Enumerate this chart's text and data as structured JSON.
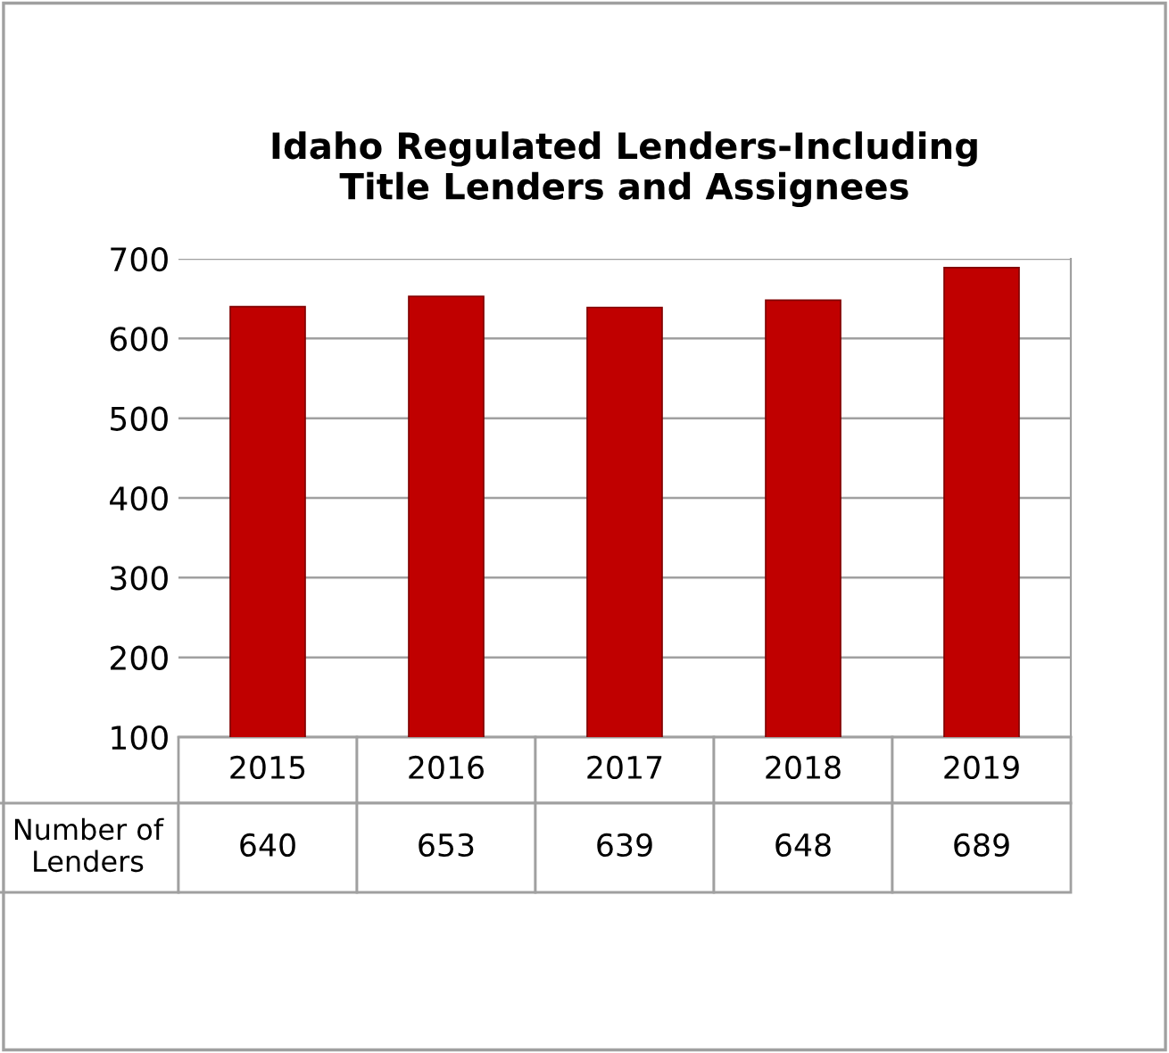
{
  "chart_data": {
    "type": "bar",
    "title": "Idaho Regulated Lenders-Including\nTitle Lenders and Assignees",
    "categories": [
      "2015",
      "2016",
      "2017",
      "2018",
      "2019"
    ],
    "series": [
      {
        "name": "Number of\nLenders",
        "color": "#c00000",
        "values": [
          640,
          653,
          639,
          648,
          689
        ]
      }
    ],
    "ylim": [
      100,
      700
    ],
    "yticks": [
      100,
      200,
      300,
      400,
      500,
      600,
      700
    ],
    "grid": "y",
    "data_labels": true,
    "legend": false
  }
}
